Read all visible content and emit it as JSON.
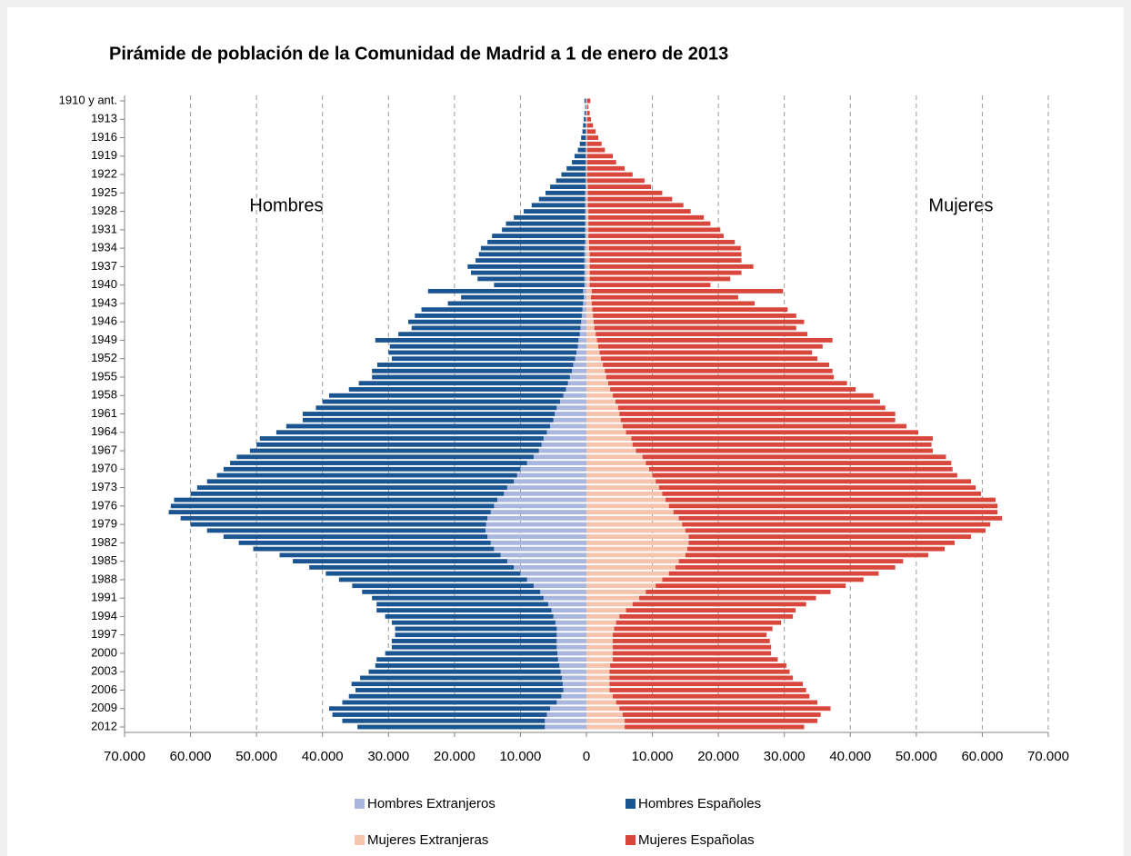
{
  "chart_data": {
    "type": "pyramid",
    "title": "Pirámide de población de la Comunidad de Madrid a 1 de enero de 2013",
    "annotations": [
      "Hombres",
      "Mujeres"
    ],
    "categories": [
      "1910 y ant.",
      null,
      null,
      "1913",
      null,
      null,
      "1916",
      null,
      null,
      "1919",
      null,
      null,
      "1922",
      null,
      null,
      "1925",
      null,
      null,
      "1928",
      null,
      null,
      "1931",
      null,
      null,
      "1934",
      null,
      null,
      "1937",
      null,
      null,
      "1940",
      null,
      null,
      "1943",
      null,
      null,
      "1946",
      null,
      null,
      "1949",
      null,
      null,
      "1952",
      null,
      null,
      "1955",
      null,
      null,
      "1958",
      null,
      null,
      "1961",
      null,
      null,
      "1964",
      null,
      null,
      "1967",
      null,
      null,
      "1970",
      null,
      null,
      "1973",
      null,
      null,
      "1976",
      null,
      null,
      "1979",
      null,
      null,
      "1982",
      null,
      null,
      "1985",
      null,
      null,
      "1988",
      null,
      null,
      "1991",
      null,
      null,
      "1994",
      null,
      null,
      "1997",
      null,
      null,
      "2000",
      null,
      null,
      "2003",
      null,
      null,
      "2006",
      null,
      null,
      "2009",
      null,
      null,
      "2012"
    ],
    "series": [
      {
        "name": "Hombres Extranjeros",
        "color": "#a9b7df",
        "values": [
          -100,
          -100,
          -100,
          -100,
          -100,
          -100,
          -100,
          -100,
          -100,
          -100,
          -100,
          -100,
          -100,
          -100,
          -100,
          -200,
          -200,
          -200,
          -200,
          -200,
          -200,
          -200,
          -200,
          -200,
          -300,
          -300,
          -300,
          -300,
          -300,
          -300,
          -300,
          -500,
          -400,
          -500,
          -600,
          -700,
          -800,
          -900,
          -1000,
          -1200,
          -1300,
          -1500,
          -1700,
          -2000,
          -2200,
          -2500,
          -2800,
          -3100,
          -3500,
          -4000,
          -4500,
          -4800,
          -5000,
          -5500,
          -6000,
          -6500,
          -6800,
          -7200,
          -8000,
          -9000,
          -10000,
          -10500,
          -11000,
          -12000,
          -12500,
          -13500,
          -14000,
          -14500,
          -15000,
          -15200,
          -15300,
          -15000,
          -14500,
          -14000,
          -13000,
          -12000,
          -11000,
          -10000,
          -9000,
          -8000,
          -7000,
          -6500,
          -5800,
          -5300,
          -5000,
          -4700,
          -4500,
          -4500,
          -4500,
          -4500,
          -4400,
          -4300,
          -4100,
          -3900,
          -3700,
          -3600,
          -3500,
          -3800,
          -4500,
          -5500,
          -6000,
          -6300,
          -6300
        ]
      },
      {
        "name": "Hombres Españoles",
        "color": "#1a5591",
        "values": [
          -200,
          -100,
          -200,
          -300,
          -400,
          -500,
          -700,
          -900,
          -1200,
          -1700,
          -2100,
          -2900,
          -3700,
          -4500,
          -5400,
          -6000,
          -7000,
          -8100,
          -9300,
          -10800,
          -12000,
          -12600,
          -14100,
          -14800,
          -15700,
          -16000,
          -16500,
          -17700,
          -17200,
          -16200,
          -13700,
          -23500,
          -18600,
          -20500,
          -24400,
          -25300,
          -26200,
          -25600,
          -27500,
          -30800,
          -28500,
          -28500,
          -27800,
          -29700,
          -30300,
          -30000,
          -31700,
          -32900,
          -35500,
          -36000,
          -36500,
          -38200,
          -38000,
          -40000,
          -41000,
          -43000,
          -43200,
          -43800,
          -45000,
          -45000,
          -45000,
          -45500,
          -46500,
          -47000,
          -47500,
          -49000,
          -49000,
          -48800,
          -46500,
          -44800,
          -42200,
          -40000,
          -38200,
          -36500,
          -33500,
          -32500,
          -31000,
          -29500,
          -28500,
          -27500,
          -27000,
          -26000,
          -26000,
          -26500,
          -25500,
          -24800,
          -24500,
          -24500,
          -25000,
          -25000,
          -26100,
          -27500,
          -27900,
          -29100,
          -30600,
          -32000,
          -31500,
          -32200,
          -32500,
          -33500,
          -32500,
          -30700,
          -28400
        ]
      },
      {
        "name": "Mujeres Extranjeras",
        "color": "#f6c4ad",
        "values": [
          100,
          100,
          100,
          100,
          100,
          100,
          100,
          100,
          100,
          100,
          100,
          100,
          100,
          100,
          200,
          200,
          200,
          200,
          300,
          300,
          300,
          300,
          300,
          400,
          400,
          500,
          500,
          500,
          500,
          500,
          500,
          800,
          700,
          800,
          900,
          1000,
          1100,
          1200,
          1400,
          1600,
          1800,
          2000,
          2200,
          2500,
          2800,
          3000,
          3300,
          3600,
          4000,
          4400,
          4800,
          5000,
          5200,
          5500,
          6000,
          6800,
          7000,
          7500,
          8500,
          9000,
          9500,
          10000,
          10500,
          11000,
          11500,
          12000,
          12500,
          13200,
          14000,
          14500,
          15000,
          15500,
          15500,
          15300,
          15000,
          14000,
          13500,
          12500,
          11500,
          10500,
          9000,
          8000,
          7000,
          6000,
          5000,
          4500,
          4200,
          4000,
          4000,
          4000,
          4000,
          4000,
          3600,
          3500,
          3500,
          3500,
          3500,
          4000,
          4500,
          5000,
          5500,
          5800,
          5800
        ]
      },
      {
        "name": "Mujeres Españolas",
        "color": "#d9463b",
        "values": [
          500,
          200,
          400,
          600,
          900,
          1300,
          1700,
          2200,
          2700,
          3900,
          4400,
          5700,
          6900,
          8700,
          9600,
          11300,
          12800,
          14500,
          15500,
          17500,
          18500,
          20000,
          20500,
          22100,
          23000,
          23000,
          23000,
          24800,
          23000,
          21300,
          18300,
          29000,
          22300,
          24700,
          29600,
          30800,
          31900,
          30600,
          32100,
          35700,
          34000,
          32200,
          32800,
          34300,
          34500,
          34500,
          36200,
          37200,
          39500,
          40100,
          40500,
          41800,
          41600,
          43000,
          44300,
          45700,
          45300,
          45000,
          46000,
          46300,
          46000,
          46200,
          47800,
          48000,
          48300,
          50000,
          49800,
          49100,
          49000,
          46700,
          45500,
          42800,
          40300,
          39000,
          36800,
          34000,
          33300,
          31800,
          30500,
          28800,
          28000,
          26800,
          26300,
          25700,
          26300,
          25000,
          24000,
          23300,
          23800,
          24000,
          24000,
          25000,
          26700,
          27300,
          27800,
          29300,
          29800,
          29800,
          30500,
          32000,
          30000,
          29200,
          27200
        ]
      }
    ],
    "xlim": [
      -70000,
      70000
    ],
    "xticks": [
      {
        "value": -70000,
        "label": "70.000"
      },
      {
        "value": -60000,
        "label": "60.000"
      },
      {
        "value": -50000,
        "label": "50.000"
      },
      {
        "value": -40000,
        "label": "40.000"
      },
      {
        "value": -30000,
        "label": "30.000"
      },
      {
        "value": -20000,
        "label": "20.000"
      },
      {
        "value": -10000,
        "label": "10.000"
      },
      0,
      {
        "value": 10000,
        "label": "10.000"
      },
      {
        "value": 20000,
        "label": "20.000"
      },
      {
        "value": 30000,
        "label": "30.000"
      },
      {
        "value": 40000,
        "label": "40.000"
      },
      {
        "value": 50000,
        "label": "50.000"
      },
      {
        "value": 60000,
        "label": "60.000"
      },
      {
        "value": 70000,
        "label": "70.000"
      }
    ],
    "grid": true
  }
}
